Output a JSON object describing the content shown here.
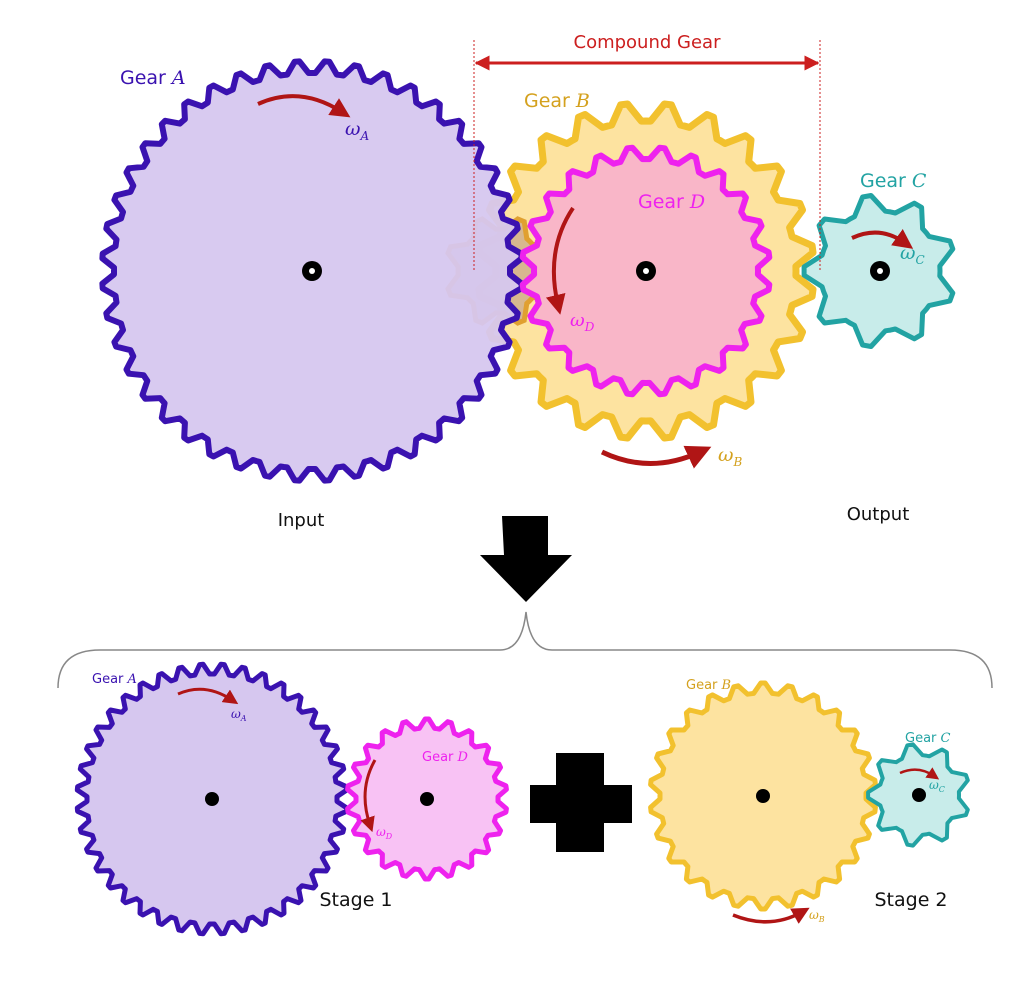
{
  "colors": {
    "gear_a_fill": "#d6c7ef",
    "gear_a_stroke": "#3a12b0",
    "gear_b_fill": "#fde3a0",
    "gear_b_stroke": "#f2c12e",
    "gear_d_fill": "#f9b6c8",
    "gear_d_stroke": "#ee22ee",
    "gear_d_small_fill": "#f8c2f4",
    "gear_c_fill": "#c8ecea",
    "gear_c_stroke": "#22a3a3",
    "arrow_red": "#b01515",
    "compound_red": "#cc1f1f"
  },
  "top": {
    "compound_label": "Compound Gear",
    "gear_a": {
      "prefix": "Gear ",
      "letter": "A",
      "omega": "ω",
      "sub": "A"
    },
    "gear_b": {
      "prefix": "Gear ",
      "letter": "B",
      "omega": "ω",
      "sub": "B"
    },
    "gear_d": {
      "prefix": "Gear ",
      "letter": "D",
      "omega": "ω",
      "sub": "D"
    },
    "gear_c": {
      "prefix": "Gear ",
      "letter": "C",
      "omega": "ω",
      "sub": "C"
    },
    "input_label": "Input",
    "output_label": "Output"
  },
  "bottom": {
    "gear_a": {
      "prefix": "Gear ",
      "letter": "A",
      "omega": "ω",
      "sub": "A"
    },
    "gear_d": {
      "prefix": "Gear ",
      "letter": "D",
      "omega": "ω",
      "sub": "D"
    },
    "gear_b": {
      "prefix": "Gear ",
      "letter": "B",
      "omega": "ω",
      "sub": "B"
    },
    "gear_c": {
      "prefix": "Gear ",
      "letter": "C",
      "omega": "ω",
      "sub": "C"
    },
    "stage1_label": "Stage 1",
    "stage2_label": "Stage 2"
  }
}
